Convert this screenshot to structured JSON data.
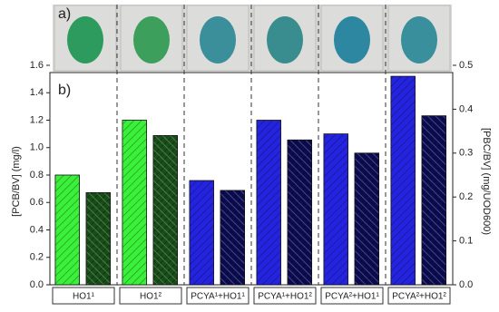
{
  "chart_data": {
    "type": "bar",
    "panel_labels": [
      "a)",
      "b)"
    ],
    "categories": [
      "HO1¹",
      "HO1²",
      "PCYA¹+HO1¹",
      "PCYA¹+HO1²",
      "PCYA²+HO1¹",
      "PCYA²+HO1²"
    ],
    "series": [
      {
        "values": [
          0.8,
          1.2,
          0.76,
          1.2,
          1.1,
          1.52
        ],
        "colors": [
          "#3af03a",
          "#3af03a",
          "#2424e0",
          "#2424e0",
          "#2424e0",
          "#2424e0"
        ]
      },
      {
        "values": [
          0.21,
          0.34,
          0.215,
          0.33,
          0.3,
          0.385
        ],
        "colors": [
          "#174d17",
          "#174d17",
          "#0b0b52",
          "#0b0b52",
          "#0b0b52",
          "#0b0b52"
        ],
        "axis": "y2"
      }
    ],
    "y_label": "[PCB/BV] (mg/l)",
    "y2_label": "[PBC/BV] (mg/UOD600)",
    "ylim": [
      0,
      1.6
    ],
    "yticks": [
      {
        "value": 0,
        "label": "0.0"
      },
      0.2,
      0.4,
      0.6,
      0.8,
      {
        "value": 1,
        "label": "1.0"
      },
      1.2,
      1.4,
      1.6
    ],
    "y2lim": [
      0,
      0.5
    ],
    "y2ticks": [
      {
        "value": 0,
        "label": "0.0"
      },
      0.1,
      0.2,
      0.3,
      0.4,
      0.5
    ]
  }
}
